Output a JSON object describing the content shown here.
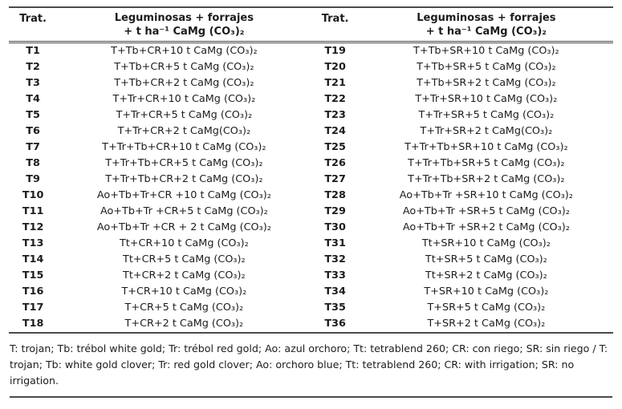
{
  "table": {
    "header": {
      "trat_label": "Trat.",
      "desc_line1": "Leguminosas + forrajes",
      "desc_line2": "+ t ha⁻¹ CaMg (CO₃)₂"
    },
    "rows": [
      {
        "left_id": "T1",
        "left_desc": "T+Tb+CR+10 t CaMg (CO₃)₂",
        "right_id": "T19",
        "right_desc": "T+Tb+SR+10 t CaMg (CO₃)₂"
      },
      {
        "left_id": "T2",
        "left_desc": "T+Tb+CR+5 t CaMg (CO₃)₂",
        "right_id": "T20",
        "right_desc": "T+Tb+SR+5 t CaMg (CO₃)₂"
      },
      {
        "left_id": "T3",
        "left_desc": "T+Tb+CR+2 t CaMg (CO₃)₂",
        "right_id": "T21",
        "right_desc": "T+Tb+SR+2 t CaMg (CO₃)₂"
      },
      {
        "left_id": "T4",
        "left_desc": "T+Tr+CR+10 t CaMg (CO₃)₂",
        "right_id": "T22",
        "right_desc": "T+Tr+SR+10 t CaMg (CO₃)₂"
      },
      {
        "left_id": "T5",
        "left_desc": "T+Tr+CR+5 t CaMg (CO₃)₂",
        "right_id": "T23",
        "right_desc": "T+Tr+SR+5 t CaMg (CO₃)₂"
      },
      {
        "left_id": "T6",
        "left_desc": "T+Tr+CR+2 t CaMg(CO₃)₂",
        "right_id": "T24",
        "right_desc": "T+Tr+SR+2 t CaMg(CO₃)₂"
      },
      {
        "left_id": "T7",
        "left_desc": "T+Tr+Tb+CR+10 t CaMg (CO₃)₂",
        "right_id": "T25",
        "right_desc": "T+Tr+Tb+SR+10 t CaMg (CO₃)₂"
      },
      {
        "left_id": "T8",
        "left_desc": "T+Tr+Tb+CR+5 t CaMg (CO₃)₂",
        "right_id": "T26",
        "right_desc": "T+Tr+Tb+SR+5 t CaMg (CO₃)₂"
      },
      {
        "left_id": "T9",
        "left_desc": "T+Tr+Tb+CR+2 t CaMg (CO₃)₂",
        "right_id": "T27",
        "right_desc": "T+Tr+Tb+SR+2 t CaMg (CO₃)₂"
      },
      {
        "left_id": "T10",
        "left_desc": "Ao+Tb+Tr+CR +10 t CaMg (CO₃)₂",
        "right_id": "T28",
        "right_desc": "Ao+Tb+Tr +SR+10 t CaMg (CO₃)₂"
      },
      {
        "left_id": "T11",
        "left_desc": "Ao+Tb+Tr +CR+5 t CaMg (CO₃)₂",
        "right_id": "T29",
        "right_desc": "Ao+Tb+Tr +SR+5 t CaMg (CO₃)₂"
      },
      {
        "left_id": "T12",
        "left_desc": "Ao+Tb+Tr +CR + 2 t CaMg (CO₃)₂",
        "right_id": "T30",
        "right_desc": "Ao+Tb+Tr +SR+2 t CaMg (CO₃)₂"
      },
      {
        "left_id": "T13",
        "left_desc": "Tt+CR+10 t CaMg (CO₃)₂",
        "right_id": "T31",
        "right_desc": "Tt+SR+10 t CaMg (CO₃)₂"
      },
      {
        "left_id": "T14",
        "left_desc": "Tt+CR+5 t CaMg (CO₃)₂",
        "right_id": "T32",
        "right_desc": "Tt+SR+5 t CaMg (CO₃)₂"
      },
      {
        "left_id": "T15",
        "left_desc": "Tt+CR+2 t CaMg (CO₃)₂",
        "right_id": "T33",
        "right_desc": "Tt+SR+2 t CaMg (CO₃)₂"
      },
      {
        "left_id": "T16",
        "left_desc": "T+CR+10 t CaMg (CO₃)₂",
        "right_id": "T34",
        "right_desc": "T+SR+10 t CaMg (CO₃)₂"
      },
      {
        "left_id": "T17",
        "left_desc": "T+CR+5 t CaMg (CO₃)₂",
        "right_id": "T35",
        "right_desc": "T+SR+5 t CaMg (CO₃)₂"
      },
      {
        "left_id": "T18",
        "left_desc": "T+CR+2 t CaMg (CO₃)₂",
        "right_id": "T36",
        "right_desc": "T+SR+2 t CaMg (CO₃)₂"
      }
    ]
  },
  "footnote": {
    "text": "T: trojan; Tb: trébol white gold; Tr: trébol red gold; Ao: azul orchoro; Tt: tetrablend 260; CR: con riego; SR: sin riego / T: trojan; Tb: white gold clover; Tr: red gold clover; Ao: orchoro blue; Tt: tetrablend 260; CR: with irrigation; SR: no irrigation."
  }
}
